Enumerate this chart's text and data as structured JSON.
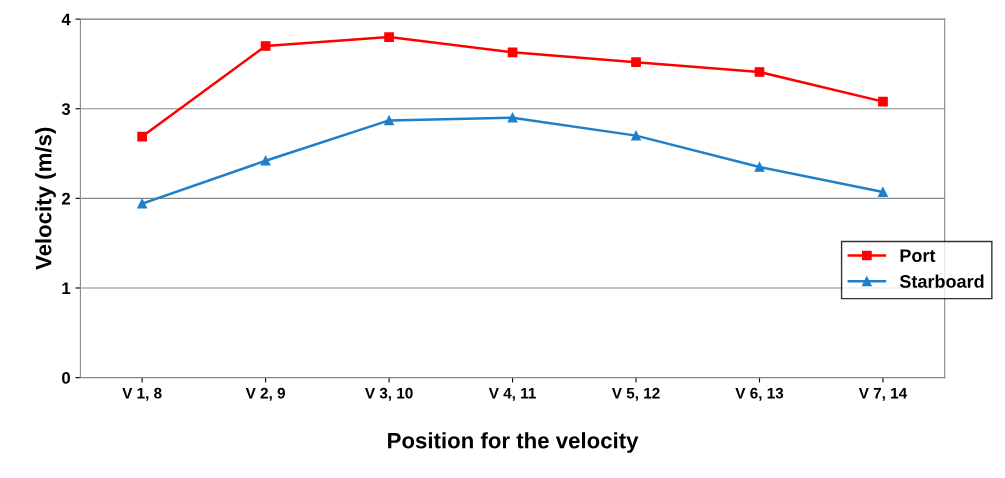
{
  "chart_data": {
    "type": "line",
    "xlabel": "Position for the velocity",
    "ylabel": "Velocity (m/s)",
    "categories": [
      "V 1, 8",
      "V 2, 9",
      "V 3, 10",
      "V 4, 11",
      "V 5, 12",
      "V 6, 13",
      "V 7, 14"
    ],
    "series": [
      {
        "name": "Port",
        "color": "#ff0000",
        "marker": "square",
        "values": [
          2.69,
          3.7,
          3.8,
          3.63,
          3.52,
          3.41,
          3.08
        ]
      },
      {
        "name": "Starboard",
        "color": "#1f7fc8",
        "marker": "triangle",
        "values": [
          1.94,
          2.42,
          2.87,
          2.9,
          2.7,
          2.35,
          2.07
        ]
      }
    ],
    "ylim": [
      0,
      4
    ],
    "yticks": [
      0,
      1,
      2,
      3,
      4
    ],
    "grid": "y",
    "legend": "right"
  }
}
